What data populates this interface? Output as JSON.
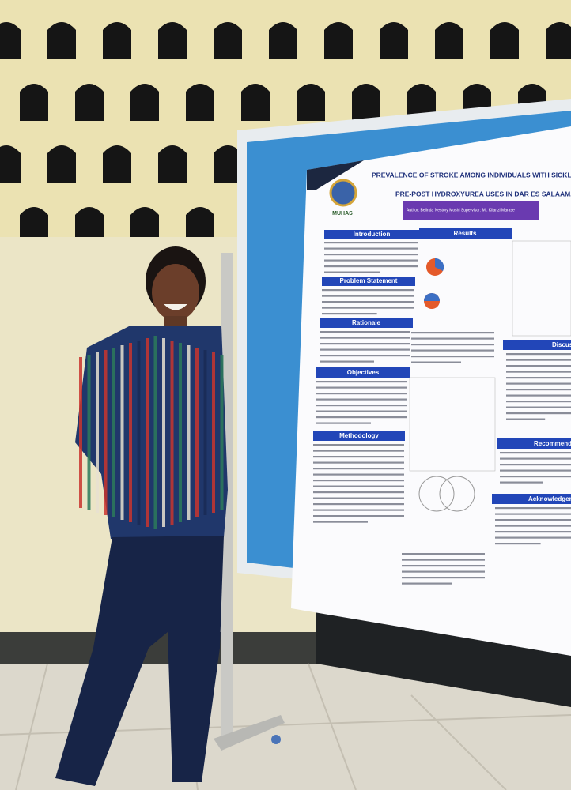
{
  "poster": {
    "title": "PREVALENCE OF STROKE AMONG INDIVIDUALS WITH SICKLE CELL DISEA",
    "subtitle": "PRE-POST HYDROXYUREA USES IN DAR ES SALAAM.",
    "logo": "MUHAS",
    "author": "Author: Belinda Nestory Moshi  Supervisor: Mr. Kilanzi Marase",
    "sections": [
      "Introduction",
      "Results",
      "Problem Statement",
      "Rationale",
      "Objectives",
      "Methodology",
      "Discussi",
      "Recommenda",
      "Acknowledgeme"
    ]
  }
}
